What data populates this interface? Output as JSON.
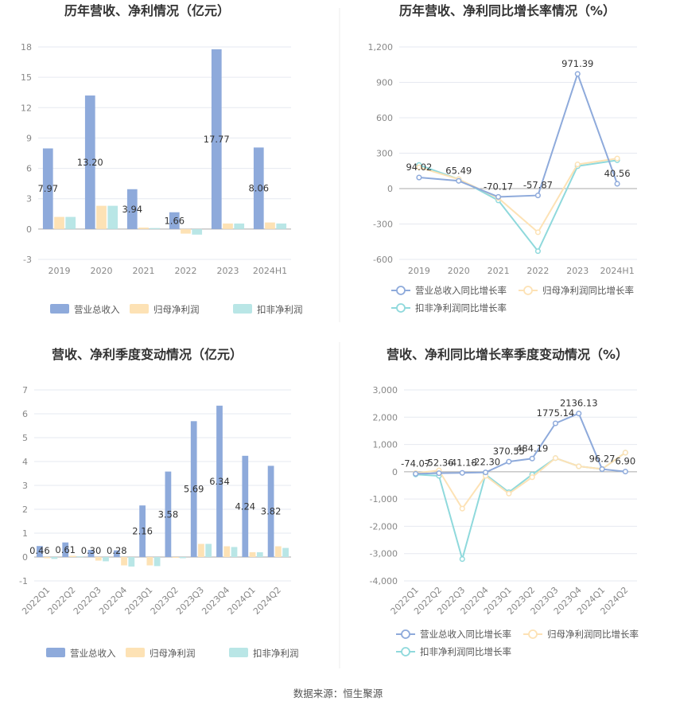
{
  "source_label": "数据来源：恒生聚源",
  "colors": {
    "revenue": "#8eaadb",
    "net_profit": "#fde2b5",
    "deducted_profit": "#b9e6e6",
    "revenue_line": "#8eaadb",
    "net_line": "#fde2b5",
    "deducted_line": "#8fd9dc",
    "grid": "#e6e9f0",
    "axis": "#999999"
  },
  "chart_data": [
    {
      "type": "bar",
      "title": "历年营收、净利情况（亿元）",
      "categories": [
        "2019",
        "2020",
        "2021",
        "2022",
        "2023",
        "2024H1"
      ],
      "yticks": [
        -3,
        0,
        3,
        6,
        9,
        12,
        15,
        18
      ],
      "ylim": [
        -3,
        18
      ],
      "series": [
        {
          "name": "营业总收入",
          "values": [
            7.97,
            13.2,
            3.94,
            1.66,
            17.77,
            8.06
          ],
          "labels": [
            "7.97",
            "13.20",
            "3.94",
            "1.66",
            "17.77",
            "8.06"
          ]
        },
        {
          "name": "归母净利润",
          "values": [
            1.2,
            2.3,
            0.15,
            -0.45,
            0.55,
            0.65
          ]
        },
        {
          "name": "扣非净利润",
          "values": [
            1.2,
            2.3,
            0.1,
            -0.55,
            0.55,
            0.55
          ]
        }
      ],
      "legend_position": "bottom"
    },
    {
      "type": "line",
      "title": "历年营收、净利同比增长率情况（%）",
      "categories": [
        "2019",
        "2020",
        "2021",
        "2022",
        "2023",
        "2024H1"
      ],
      "yticks": [
        -600,
        -300,
        0,
        300,
        600,
        900,
        1200
      ],
      "ytick_labels": [
        "-600",
        "-300",
        "0",
        "300",
        "600",
        "900",
        "1,200"
      ],
      "ylim": [
        -600,
        1200
      ],
      "series": [
        {
          "name": "营业总收入同比增长率",
          "values": [
            94.02,
            65.49,
            -70.17,
            -57.87,
            971.39,
            40.56
          ],
          "labels": [
            "94.02",
            "65.49",
            "-70.17",
            "-57.87",
            "971.39",
            "40.56"
          ]
        },
        {
          "name": "归母净利润同比增长率",
          "values": [
            180,
            80,
            -80,
            -370,
            205,
            255
          ]
        },
        {
          "name": "扣非净利润同比增长率",
          "values": [
            200,
            80,
            -100,
            -530,
            190,
            240
          ]
        }
      ],
      "legend_position": "bottom"
    },
    {
      "type": "bar",
      "title": "营收、净利季度变动情况（亿元）",
      "categories": [
        "2022Q1",
        "2022Q2",
        "2022Q3",
        "2022Q4",
        "2023Q1",
        "2023Q2",
        "2023Q3",
        "2023Q4",
        "2024Q1",
        "2024Q2"
      ],
      "yticks": [
        -1,
        0,
        1,
        2,
        3,
        4,
        5,
        6,
        7
      ],
      "ylim": [
        -1,
        7
      ],
      "series": [
        {
          "name": "营业总收入",
          "values": [
            0.46,
            0.61,
            0.3,
            0.28,
            2.16,
            3.58,
            5.69,
            6.34,
            4.24,
            3.82
          ],
          "labels": [
            "0.46",
            "0.61",
            "0.30",
            "0.28",
            "2.16",
            "3.58",
            "5.69",
            "6.34",
            "4.24",
            "3.82"
          ]
        },
        {
          "name": "归母净利润",
          "values": [
            -0.05,
            0.05,
            -0.15,
            -0.35,
            -0.35,
            -0.03,
            0.55,
            0.45,
            0.2,
            0.45
          ]
        },
        {
          "name": "扣非净利润",
          "values": [
            -0.08,
            0.03,
            -0.18,
            -0.4,
            -0.38,
            -0.05,
            0.55,
            0.42,
            0.2,
            0.38
          ]
        }
      ],
      "legend_position": "bottom"
    },
    {
      "type": "line",
      "title": "营收、净利同比增长率季度变动情况（%）",
      "categories": [
        "2022Q1",
        "2022Q2",
        "2022Q3",
        "2022Q4",
        "2023Q1",
        "2023Q2",
        "2023Q3",
        "2023Q4",
        "2024Q1",
        "2024Q2"
      ],
      "yticks": [
        -4000,
        -3000,
        -2000,
        -1000,
        0,
        1000,
        2000,
        3000
      ],
      "ytick_labels": [
        "-4,000",
        "-3,000",
        "-2,000",
        "-1,000",
        "0",
        "1,000",
        "2,000",
        "3,000"
      ],
      "ylim": [
        -4000,
        3000
      ],
      "series": [
        {
          "name": "营业总收入同比增长率",
          "values": [
            -74.07,
            -52.36,
            -41.18,
            -22.3,
            370.55,
            484.19,
            1775.14,
            2136.13,
            96.27,
            6.9
          ],
          "labels": [
            "-74.07",
            "-52.36",
            "-41.18",
            "-22.30",
            "370.55",
            "484.19",
            "1775.14",
            "2136.13",
            "96.27",
            "6.90"
          ]
        },
        {
          "name": "归母净利润同比增长率",
          "values": [
            -50,
            50,
            -1350,
            -150,
            -800,
            -200,
            500,
            200,
            100,
            700
          ]
        },
        {
          "name": "扣非净利润同比增长率",
          "values": [
            -100,
            -150,
            -3200,
            -100,
            -750,
            -100,
            500,
            200,
            100,
            700
          ]
        }
      ],
      "legend_position": "bottom"
    }
  ]
}
